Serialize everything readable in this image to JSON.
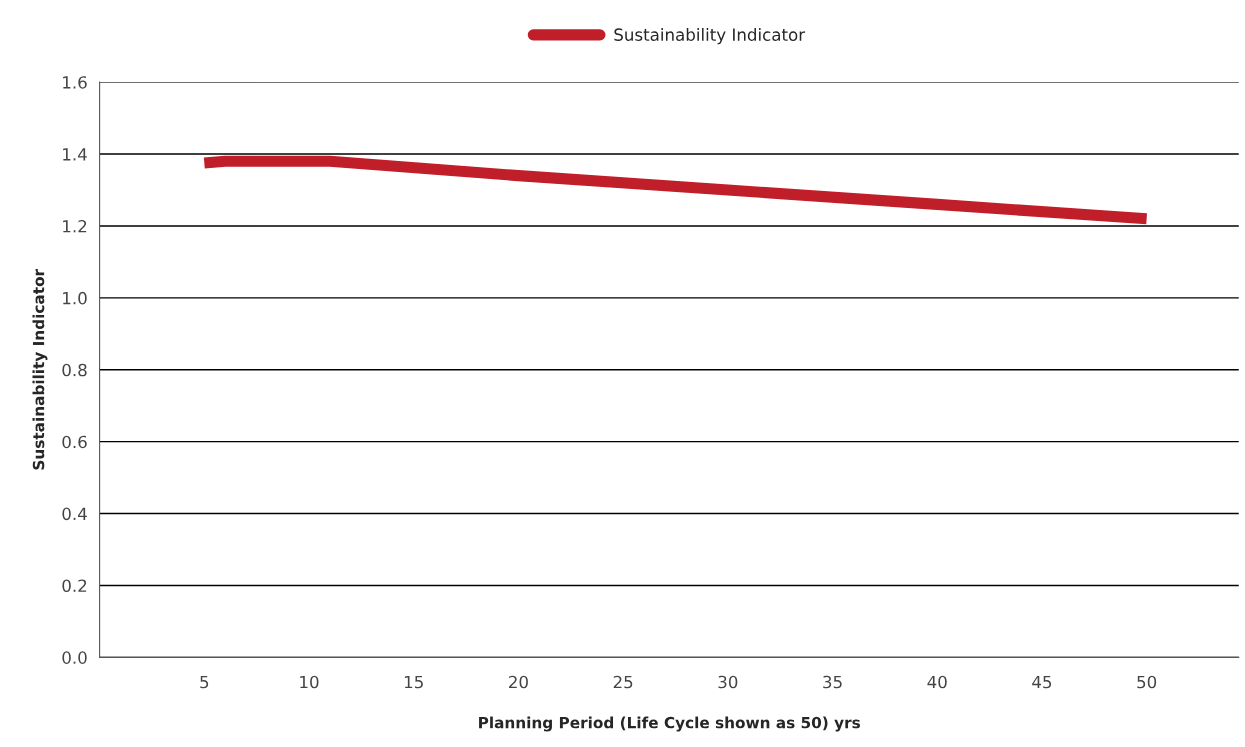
{
  "chart_data": {
    "type": "line",
    "xlabel": "Planning Period (Life Cycle shown as 50) yrs",
    "ylabel": "Sustainability Indicator",
    "series": [
      {
        "name": "Sustainability Indicator",
        "color": "#c01f2a",
        "x": [
          5,
          6,
          11,
          20,
          30,
          40,
          50
        ],
        "values": [
          1.375,
          1.38,
          1.38,
          1.34,
          1.3,
          1.26,
          1.22
        ]
      }
    ],
    "xlim": [
      0,
      54.4
    ],
    "xticks": [
      5,
      10,
      15,
      20,
      25,
      30,
      35,
      40,
      45,
      50
    ],
    "ylim": [
      0,
      1.6
    ],
    "yticks": [
      {
        "value": 0,
        "label": "0.0"
      },
      {
        "value": 0.2,
        "label": "0.2"
      },
      {
        "value": 0.4,
        "label": "0.4"
      },
      {
        "value": 0.6,
        "label": "0.6"
      },
      {
        "value": 0.8,
        "label": "0.8"
      },
      {
        "value": 1.0,
        "label": "1.0"
      },
      {
        "value": 1.2,
        "label": "1.2"
      },
      {
        "value": 1.4,
        "label": "1.4"
      },
      {
        "value": 1.6,
        "label": "1.6"
      }
    ],
    "grid": "y",
    "legend": "top",
    "marker": "none",
    "line_style": "solid"
  }
}
